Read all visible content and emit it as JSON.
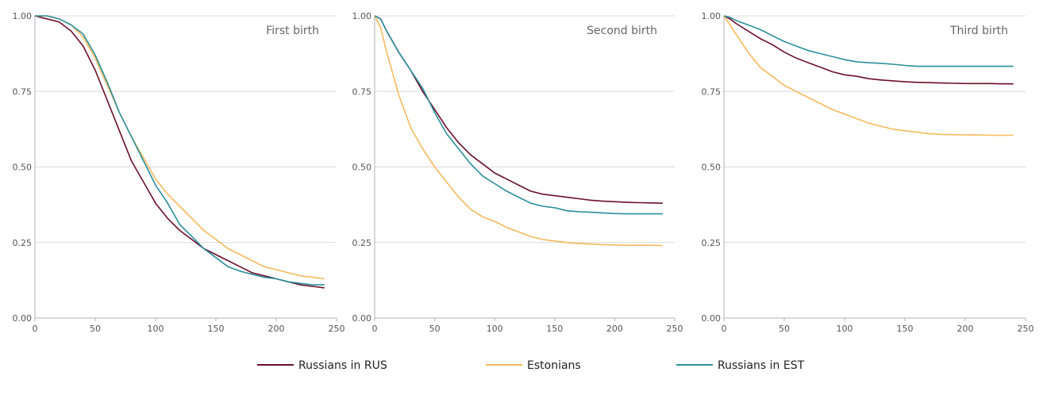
{
  "colors": {
    "Russians in RUS": "#6b0f2a",
    "Estonians": "#f7b95c",
    "Russians in EST": "#2a8f9c"
  },
  "chart_data": [
    {
      "type": "line",
      "title": "First birth",
      "xlim": [
        0,
        250
      ],
      "ylim": [
        0,
        1
      ],
      "xticks": [
        "0",
        "50",
        "100",
        "150",
        "200",
        "250"
      ],
      "yticks": [
        "0.00",
        "0.25",
        "0.50",
        "0.75",
        "1.00"
      ],
      "grid": true,
      "series": [
        {
          "name": "Russians in RUS",
          "x": [
            0,
            10,
            20,
            30,
            40,
            50,
            60,
            70,
            80,
            90,
            100,
            110,
            120,
            130,
            140,
            150,
            160,
            170,
            180,
            190,
            200,
            210,
            220,
            230,
            240
          ],
          "y": [
            1.0,
            0.99,
            0.98,
            0.95,
            0.9,
            0.82,
            0.72,
            0.62,
            0.52,
            0.45,
            0.38,
            0.33,
            0.29,
            0.26,
            0.23,
            0.21,
            0.19,
            0.17,
            0.15,
            0.14,
            0.13,
            0.12,
            0.11,
            0.105,
            0.1
          ]
        },
        {
          "name": "Estonians",
          "x": [
            0,
            10,
            20,
            30,
            40,
            50,
            60,
            70,
            80,
            90,
            100,
            110,
            120,
            130,
            140,
            150,
            160,
            170,
            180,
            190,
            200,
            210,
            220,
            230,
            240
          ],
          "y": [
            1.0,
            1.0,
            0.99,
            0.97,
            0.93,
            0.86,
            0.77,
            0.68,
            0.6,
            0.53,
            0.46,
            0.41,
            0.37,
            0.33,
            0.29,
            0.26,
            0.23,
            0.21,
            0.19,
            0.17,
            0.16,
            0.15,
            0.14,
            0.135,
            0.13
          ]
        },
        {
          "name": "Russians in EST",
          "x": [
            0,
            10,
            20,
            30,
            40,
            50,
            60,
            70,
            80,
            90,
            100,
            110,
            120,
            130,
            140,
            150,
            160,
            170,
            180,
            190,
            200,
            210,
            220,
            230,
            240
          ],
          "y": [
            1.0,
            1.0,
            0.99,
            0.97,
            0.94,
            0.87,
            0.78,
            0.68,
            0.6,
            0.52,
            0.44,
            0.38,
            0.31,
            0.27,
            0.23,
            0.2,
            0.17,
            0.155,
            0.145,
            0.135,
            0.13,
            0.12,
            0.115,
            0.11,
            0.11
          ]
        }
      ]
    },
    {
      "type": "line",
      "title": "Second birth",
      "xlim": [
        0,
        250
      ],
      "ylim": [
        0,
        1
      ],
      "xticks": [
        "0",
        "50",
        "100",
        "150",
        "200",
        "250"
      ],
      "yticks": [
        "0.00",
        "0.25",
        "0.50",
        "0.75",
        "1.00"
      ],
      "grid": true,
      "series": [
        {
          "name": "Russians in RUS",
          "x": [
            0,
            5,
            10,
            20,
            30,
            40,
            50,
            60,
            70,
            80,
            90,
            100,
            110,
            120,
            130,
            140,
            150,
            160,
            170,
            180,
            190,
            200,
            210,
            220,
            230,
            240
          ],
          "y": [
            1.0,
            0.99,
            0.95,
            0.88,
            0.82,
            0.75,
            0.69,
            0.63,
            0.58,
            0.54,
            0.51,
            0.48,
            0.46,
            0.44,
            0.42,
            0.41,
            0.405,
            0.4,
            0.395,
            0.39,
            0.387,
            0.385,
            0.383,
            0.382,
            0.381,
            0.38
          ]
        },
        {
          "name": "Estonians",
          "x": [
            0,
            5,
            10,
            20,
            30,
            40,
            50,
            60,
            70,
            80,
            90,
            100,
            110,
            120,
            130,
            140,
            150,
            160,
            170,
            180,
            190,
            200,
            210,
            220,
            230,
            240
          ],
          "y": [
            1.0,
            0.96,
            0.88,
            0.74,
            0.63,
            0.56,
            0.5,
            0.45,
            0.4,
            0.36,
            0.335,
            0.32,
            0.3,
            0.285,
            0.27,
            0.26,
            0.255,
            0.25,
            0.247,
            0.245,
            0.243,
            0.242,
            0.241,
            0.241,
            0.241,
            0.24
          ]
        },
        {
          "name": "Russians in EST",
          "x": [
            0,
            5,
            10,
            20,
            30,
            40,
            50,
            60,
            70,
            80,
            90,
            100,
            110,
            120,
            130,
            140,
            150,
            160,
            170,
            180,
            190,
            200,
            210,
            220,
            230,
            240
          ],
          "y": [
            1.0,
            0.99,
            0.95,
            0.88,
            0.82,
            0.76,
            0.68,
            0.61,
            0.56,
            0.51,
            0.47,
            0.445,
            0.42,
            0.4,
            0.38,
            0.37,
            0.365,
            0.355,
            0.352,
            0.35,
            0.348,
            0.346,
            0.345,
            0.345,
            0.345,
            0.345
          ]
        }
      ]
    },
    {
      "type": "line",
      "title": "Third birth",
      "xlim": [
        0,
        250
      ],
      "ylim": [
        0,
        1
      ],
      "xticks": [
        "0",
        "50",
        "100",
        "150",
        "200",
        "250"
      ],
      "yticks": [
        "0.00",
        "0.25",
        "0.50",
        "0.75",
        "1.00"
      ],
      "grid": true,
      "series": [
        {
          "name": "Russians in RUS",
          "x": [
            0,
            5,
            10,
            20,
            30,
            40,
            50,
            60,
            70,
            80,
            90,
            100,
            110,
            120,
            130,
            140,
            150,
            160,
            170,
            180,
            190,
            200,
            210,
            220,
            230,
            240
          ],
          "y": [
            1.0,
            0.99,
            0.975,
            0.95,
            0.925,
            0.905,
            0.88,
            0.86,
            0.845,
            0.83,
            0.815,
            0.805,
            0.8,
            0.792,
            0.788,
            0.785,
            0.782,
            0.78,
            0.779,
            0.778,
            0.777,
            0.776,
            0.776,
            0.776,
            0.775,
            0.775
          ]
        },
        {
          "name": "Estonians",
          "x": [
            0,
            5,
            10,
            20,
            30,
            40,
            50,
            60,
            70,
            80,
            90,
            100,
            110,
            120,
            130,
            140,
            150,
            160,
            170,
            180,
            190,
            200,
            210,
            220,
            230,
            240
          ],
          "y": [
            1.0,
            0.97,
            0.94,
            0.88,
            0.83,
            0.8,
            0.77,
            0.75,
            0.73,
            0.71,
            0.69,
            0.675,
            0.66,
            0.645,
            0.635,
            0.625,
            0.62,
            0.615,
            0.61,
            0.608,
            0.607,
            0.606,
            0.606,
            0.605,
            0.605,
            0.605
          ]
        },
        {
          "name": "Russians in EST",
          "x": [
            0,
            5,
            10,
            20,
            30,
            40,
            50,
            60,
            70,
            80,
            90,
            100,
            110,
            120,
            130,
            140,
            150,
            160,
            170,
            180,
            190,
            200,
            210,
            220,
            230,
            240
          ],
          "y": [
            1.0,
            0.995,
            0.985,
            0.97,
            0.955,
            0.935,
            0.915,
            0.9,
            0.885,
            0.875,
            0.865,
            0.855,
            0.848,
            0.845,
            0.843,
            0.84,
            0.836,
            0.833,
            0.833,
            0.833,
            0.833,
            0.833,
            0.833,
            0.833,
            0.833,
            0.833
          ]
        }
      ]
    }
  ],
  "legend": {
    "placement": "bottom-center",
    "items": [
      {
        "label": "Russians in RUS"
      },
      {
        "label": "Estonians"
      },
      {
        "label": "Russians in EST"
      }
    ]
  }
}
